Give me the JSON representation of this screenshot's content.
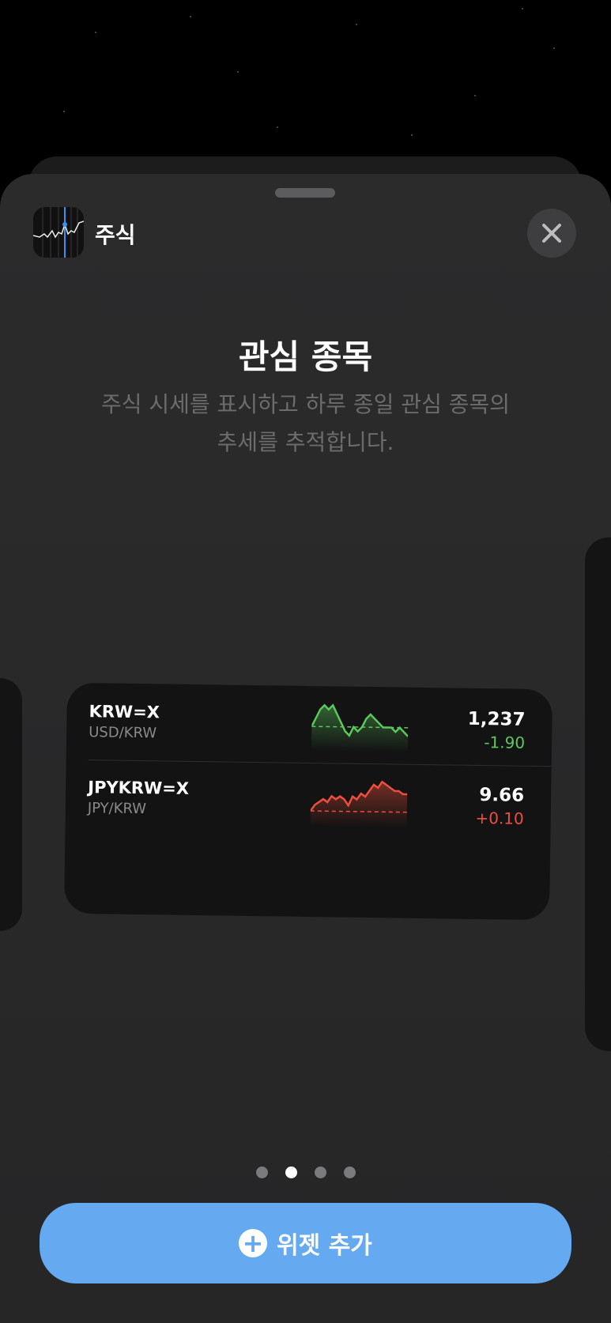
{
  "app": {
    "name": "주식",
    "icon": "stocks-app-icon"
  },
  "close_icon": "close-icon",
  "widget_info": {
    "title": "관심 종목",
    "description_line1": "주식 시세를 표시하고 하루 종일 관심 종목의",
    "description_line2": "추세를 추적합니다."
  },
  "widget": {
    "rows": [
      {
        "symbol": "KRW=X",
        "name": "USD/KRW",
        "price": "1,237",
        "change": "-1.90",
        "color": "#5ac85a",
        "sparkline": [
          5,
          7,
          9,
          10,
          9,
          10,
          8,
          6,
          4,
          3,
          5,
          4,
          5,
          7,
          8,
          7,
          6,
          5,
          5,
          5,
          4,
          5,
          4,
          3
        ],
        "baseline": 5
      },
      {
        "symbol": "JPYKRW=X",
        "name": "JPY/KRW",
        "price": "9.66",
        "change": "+0.10",
        "color": "#ee4e3e",
        "sparkline": [
          1,
          3,
          4,
          5,
          4,
          6,
          5,
          6,
          5,
          3,
          6,
          5,
          7,
          6,
          8,
          10,
          9,
          11,
          10,
          9,
          8,
          8,
          7,
          7
        ],
        "baseline": 1
      }
    ]
  },
  "pagination": {
    "count": 4,
    "active": 1
  },
  "add_button": {
    "label": "위젯 추가",
    "icon": "plus-circle-icon",
    "color": "#65a9f0"
  }
}
